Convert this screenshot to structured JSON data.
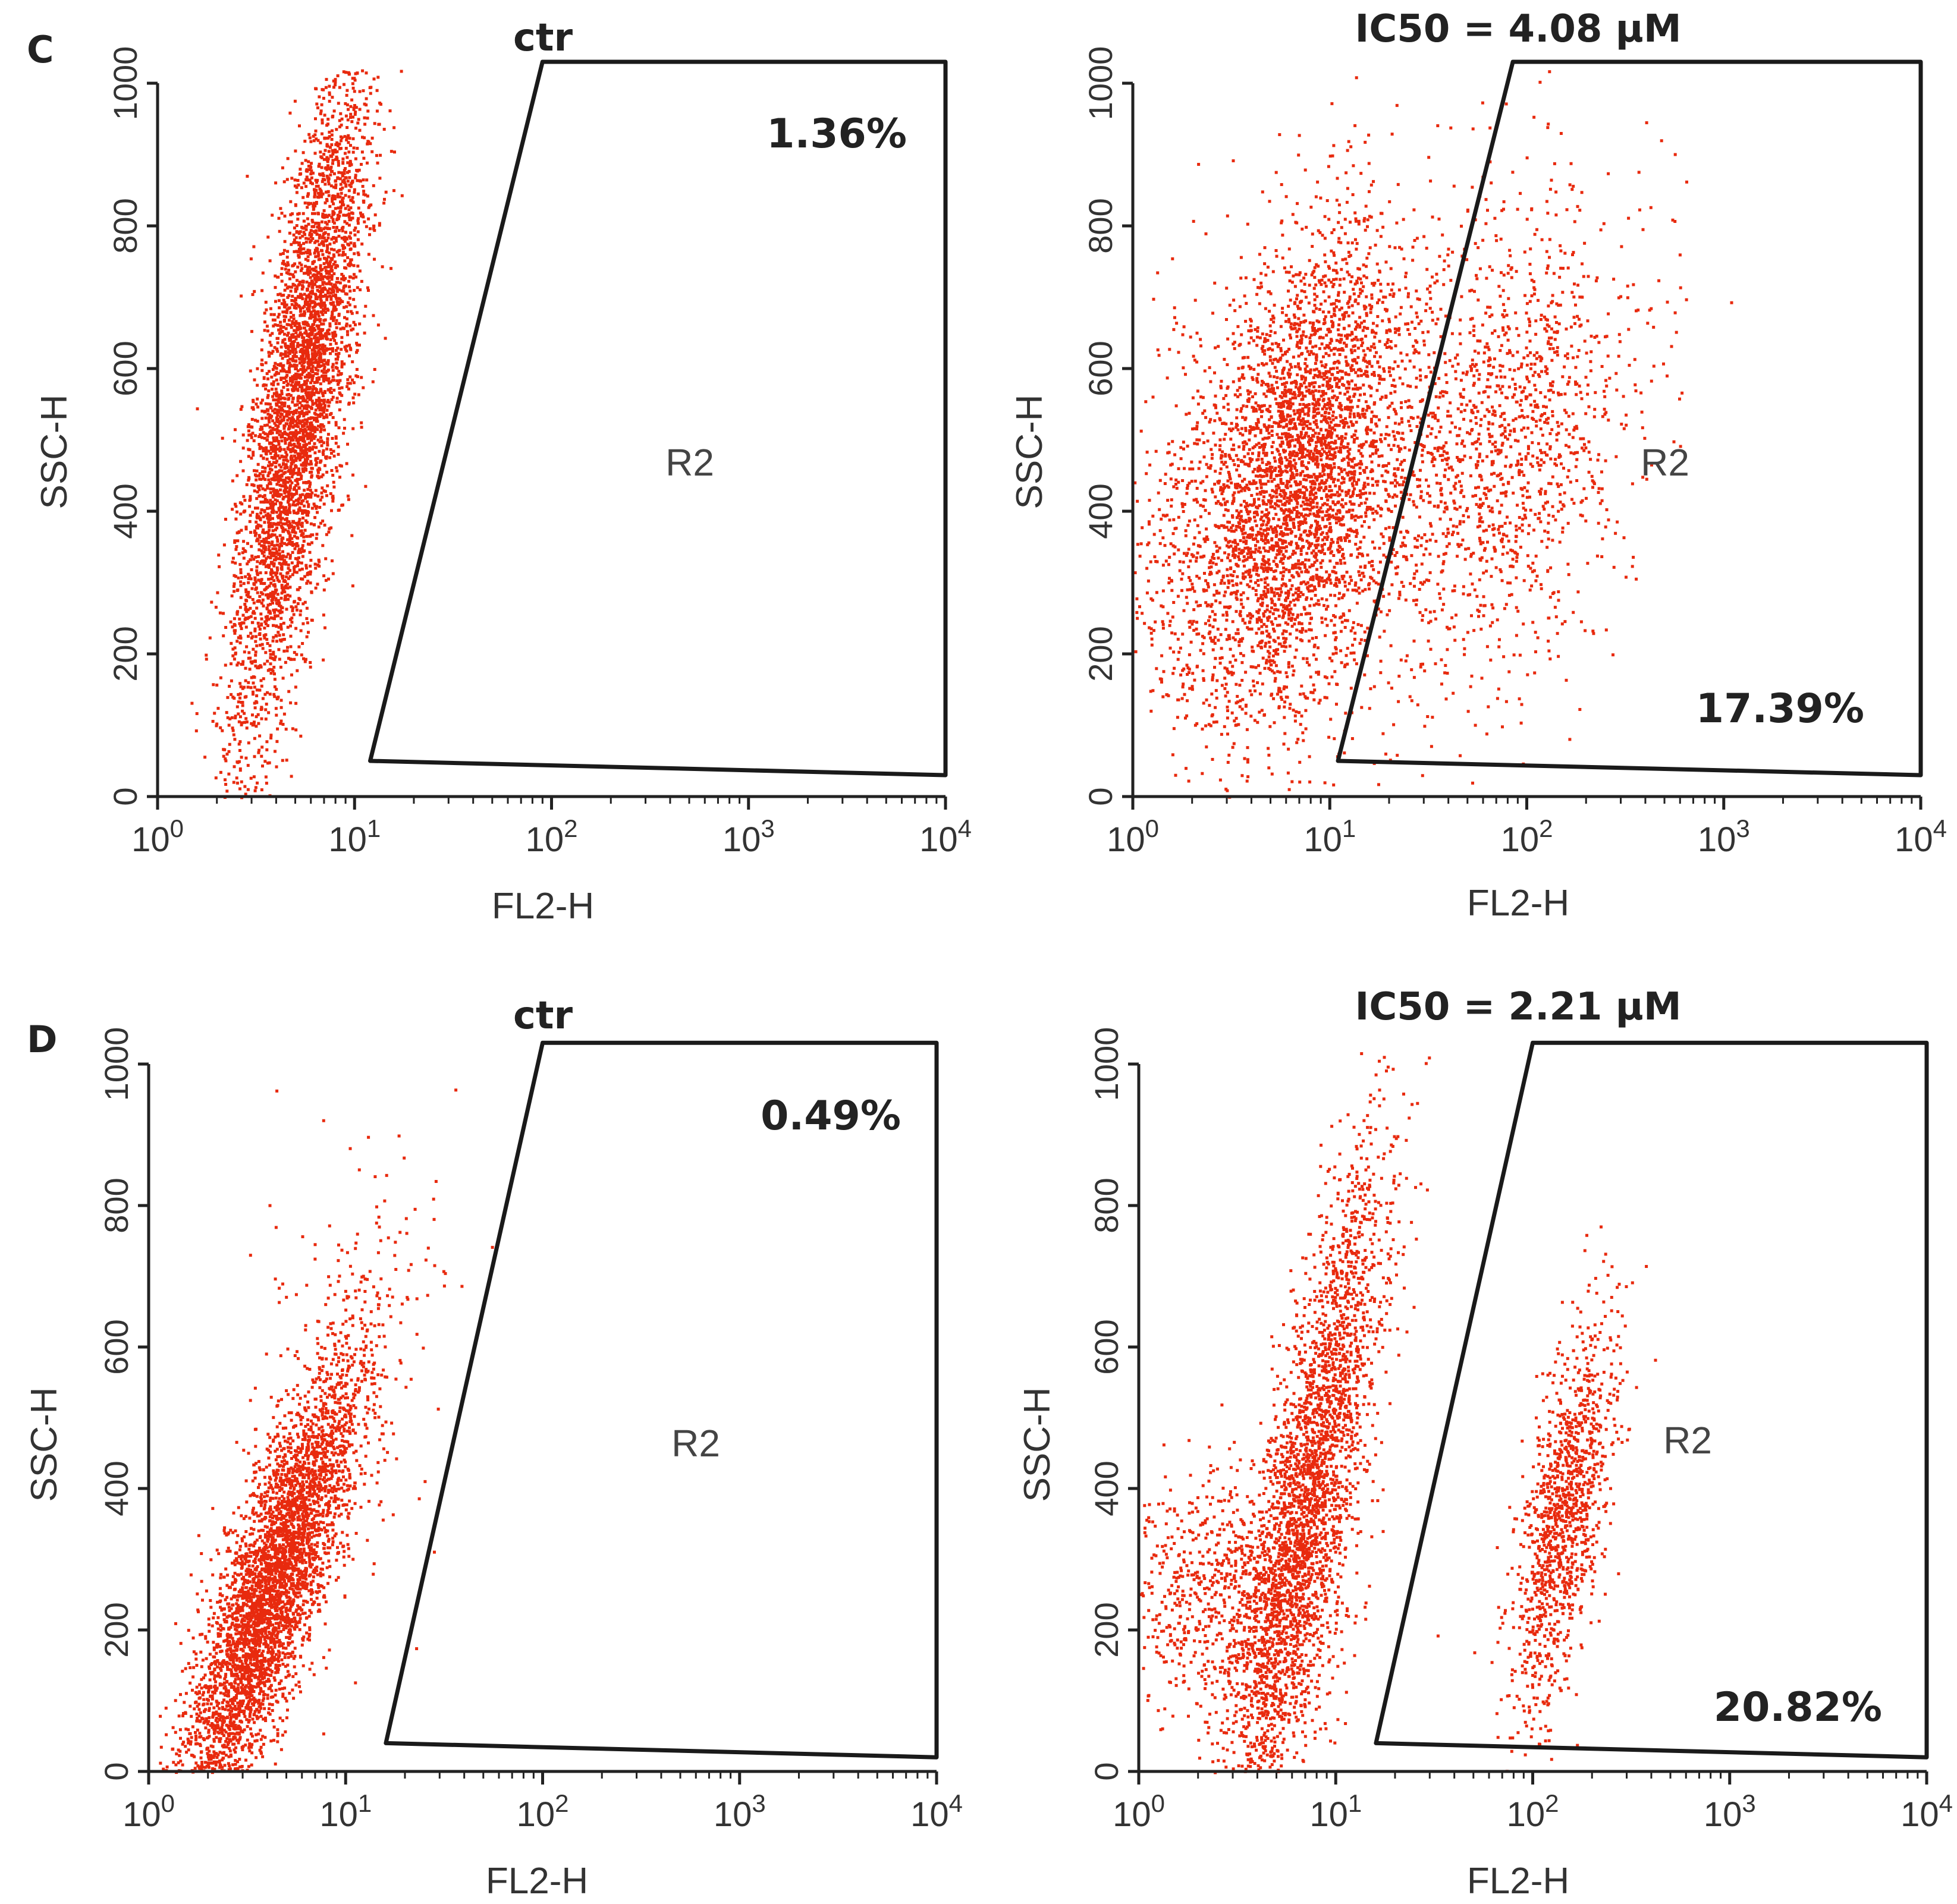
{
  "figure": {
    "panel_rows": [
      "C",
      "D"
    ]
  },
  "chart_data": [
    {
      "type": "scatter",
      "row": "C",
      "title": "ctr",
      "xlabel": "FL2-H",
      "ylabel": "SSC-H",
      "xscale": "log",
      "xlim": [
        1,
        10000
      ],
      "ylim": [
        0,
        1000
      ],
      "xticks": [
        {
          "base": "10",
          "exp": "0"
        },
        {
          "base": "10",
          "exp": "1"
        },
        {
          "base": "10",
          "exp": "2"
        },
        {
          "base": "10",
          "exp": "3"
        },
        {
          "base": "10",
          "exp": "4"
        }
      ],
      "yticks": [
        "0",
        "200",
        "400",
        "600",
        "800",
        "1000"
      ],
      "gate": {
        "label": "R2",
        "vertices_data": [
          [
            90,
            1030
          ],
          [
            12,
            50
          ],
          [
            10000,
            30
          ],
          [
            10000,
            1030
          ]
        ]
      },
      "gate_percent": "1.36%",
      "percent_position": "top-right",
      "clusters": [
        {
          "n": 4200,
          "x_log_center": 0.72,
          "x_log_sd": 0.17,
          "y_center": 560,
          "y_sd": 160,
          "slope": 180
        }
      ],
      "seed": 11
    },
    {
      "type": "scatter",
      "row": "C",
      "title": "IC50 = 4.08 μM",
      "xlabel": "FL2-H",
      "ylabel": "SSC-H",
      "xscale": "log",
      "xlim": [
        1,
        10000
      ],
      "ylim": [
        0,
        1000
      ],
      "xticks": [
        {
          "base": "10",
          "exp": "0"
        },
        {
          "base": "10",
          "exp": "1"
        },
        {
          "base": "10",
          "exp": "2"
        },
        {
          "base": "10",
          "exp": "3"
        },
        {
          "base": "10",
          "exp": "4"
        }
      ],
      "yticks": [
        "0",
        "200",
        "400",
        "600",
        "800",
        "1000"
      ],
      "gate": {
        "label": "R2",
        "vertices_data": [
          [
            85,
            1030
          ],
          [
            11,
            50
          ],
          [
            10000,
            30
          ],
          [
            10000,
            1030
          ]
        ]
      },
      "gate_percent": "17.39%",
      "percent_position": "bottom-right",
      "clusters": [
        {
          "n": 3200,
          "x_log_center": 0.85,
          "x_log_sd": 0.26,
          "y_center": 470,
          "y_sd": 150,
          "slope": 60
        },
        {
          "n": 1000,
          "x_log_center": 0.55,
          "x_log_sd": 0.45,
          "y_center": 340,
          "y_sd": 160,
          "slope": 0
        },
        {
          "n": 1500,
          "x_log_center": 1.85,
          "x_log_sd": 0.35,
          "y_center": 500,
          "y_sd": 170,
          "slope": 40
        }
      ],
      "seed": 23
    },
    {
      "type": "scatter",
      "row": "D",
      "title": "ctr",
      "xlabel": "FL2-H",
      "ylabel": "SSC-H",
      "xscale": "log",
      "xlim": [
        1,
        10000
      ],
      "ylim": [
        0,
        1000
      ],
      "xticks": [
        {
          "base": "10",
          "exp": "0"
        },
        {
          "base": "10",
          "exp": "1"
        },
        {
          "base": "10",
          "exp": "2"
        },
        {
          "base": "10",
          "exp": "3"
        },
        {
          "base": "10",
          "exp": "4"
        }
      ],
      "yticks": [
        "0",
        "200",
        "400",
        "600",
        "800",
        "1000"
      ],
      "gate": {
        "label": "R2",
        "vertices_data": [
          [
            100,
            1030
          ],
          [
            16,
            40
          ],
          [
            10000,
            20
          ],
          [
            10000,
            1030
          ]
        ]
      },
      "gate_percent": "0.49%",
      "percent_position": "top-right",
      "clusters": [
        {
          "n": 4200,
          "x_log_center": 0.6,
          "x_log_sd": 0.22,
          "y_center": 250,
          "y_sd": 90,
          "slope": 130
        },
        {
          "n": 300,
          "x_log_center": 0.9,
          "x_log_sd": 0.25,
          "y_center": 480,
          "y_sd": 150,
          "slope": 80
        }
      ],
      "seed": 37
    },
    {
      "type": "scatter",
      "row": "D",
      "title": "IC50 = 2.21 μM",
      "xlabel": "FL2-H",
      "ylabel": "SSC-H",
      "xscale": "log",
      "xlim": [
        1,
        10000
      ],
      "ylim": [
        0,
        1000
      ],
      "xticks": [
        {
          "base": "10",
          "exp": "0"
        },
        {
          "base": "10",
          "exp": "1"
        },
        {
          "base": "10",
          "exp": "2"
        },
        {
          "base": "10",
          "exp": "3"
        },
        {
          "base": "10",
          "exp": "4"
        }
      ],
      "yticks": [
        "0",
        "200",
        "400",
        "600",
        "800",
        "1000"
      ],
      "gate": {
        "label": "R2",
        "vertices_data": [
          [
            100,
            1030
          ],
          [
            16,
            40
          ],
          [
            10000,
            20
          ],
          [
            10000,
            1030
          ]
        ]
      },
      "gate_percent": "20.82%",
      "percent_position": "bottom-right",
      "clusters": [
        {
          "n": 3000,
          "x_log_center": 0.85,
          "x_log_sd": 0.2,
          "y_center": 380,
          "y_sd": 150,
          "slope": 200
        },
        {
          "n": 900,
          "x_log_center": 0.45,
          "x_log_sd": 0.3,
          "y_center": 250,
          "y_sd": 90,
          "slope": 0
        },
        {
          "n": 1200,
          "x_log_center": 2.15,
          "x_log_sd": 0.13,
          "y_center": 360,
          "y_sd": 110,
          "slope": 90
        }
      ],
      "seed": 53
    }
  ],
  "colors": {
    "dots": "#e82a0e",
    "axis": "#222222",
    "gate": "#1a1a1a",
    "background": "#ffffff"
  }
}
